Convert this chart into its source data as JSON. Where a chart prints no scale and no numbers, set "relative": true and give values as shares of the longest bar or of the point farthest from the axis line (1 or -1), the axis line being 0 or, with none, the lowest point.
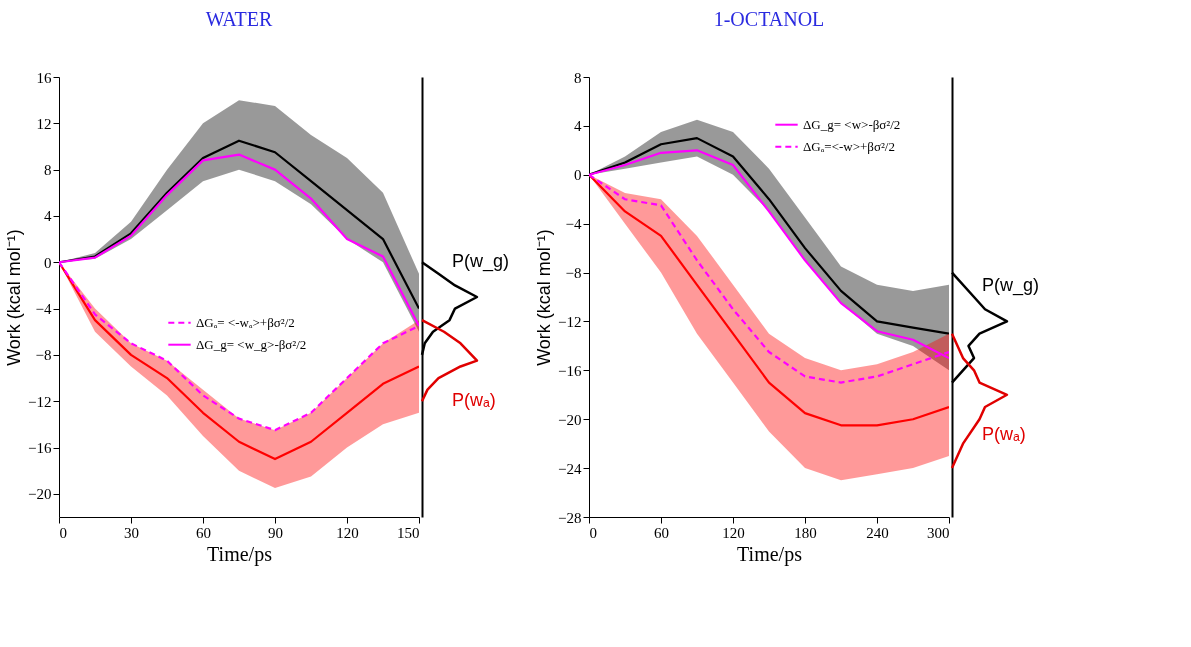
{
  "chart_data": [
    {
      "type": "line",
      "title": "WATER",
      "xlabel": "Time/ps",
      "ylabel": "Work (kcal mol⁻¹)",
      "xlim": [
        0,
        150
      ],
      "ylim": [
        -22,
        16
      ],
      "xticks": [
        0,
        30,
        60,
        90,
        120,
        150
      ],
      "yticks": [
        -20,
        -16,
        -12,
        -8,
        -4,
        0,
        4,
        8,
        12,
        16
      ],
      "legend": "left",
      "marker": "none",
      "grid": false,
      "x": [
        0,
        15,
        30,
        45,
        60,
        75,
        90,
        105,
        120,
        135,
        150
      ],
      "series": [
        {
          "color": "#000000",
          "values": [
            0,
            0.5,
            2.5,
            6,
            9,
            10.5,
            9.5,
            7,
            4.5,
            2,
            -4
          ],
          "lower": [
            0,
            0.3,
            2,
            4.5,
            7,
            8,
            7,
            5,
            2,
            0,
            -6
          ],
          "upper": [
            0,
            0.8,
            3.5,
            8,
            12,
            14,
            13.5,
            11,
            9,
            6,
            -1
          ]
        },
        {
          "color": "#ff0000",
          "values": [
            0,
            -5,
            -8,
            -10,
            -13,
            -15.5,
            -17,
            -15.5,
            -13,
            -10.5,
            -9
          ],
          "lower": [
            0,
            -6,
            -9,
            -11.5,
            -15,
            -18,
            -19.5,
            -18.5,
            -16,
            -14,
            -13
          ],
          "upper": [
            0,
            -4,
            -7,
            -8.5,
            -11,
            -13.5,
            -14.5,
            -13,
            -10,
            -7,
            -5
          ]
        },
        {
          "name": "ΔGₐ= <-wₐ>+βσ²/2",
          "color": "#ff00ff",
          "line_style": "dashed",
          "values": [
            0,
            -4.5,
            -7,
            -8.5,
            -11.5,
            -13.5,
            -14.5,
            -13,
            -10,
            -7,
            -5.5
          ]
        },
        {
          "name": "ΔG_g= <w_g>-βσ²/2",
          "color": "#ff00ff",
          "line_style": "solid",
          "values": [
            0,
            0.4,
            2.3,
            5.8,
            8.8,
            9.3,
            8,
            5.5,
            2,
            0.5,
            -5.5
          ]
        }
      ]
    },
    {
      "type": "line",
      "orientation": "horizontal",
      "relative": true,
      "ylim": [
        -22,
        16
      ],
      "tick_labels": false,
      "series": [
        {
          "name": "P(w_g)",
          "color": "#000000",
          "x": [
            0,
            -1,
            -2,
            -3,
            -4,
            -5,
            -6,
            -7,
            -8
          ],
          "values": [
            0,
            0.3,
            0.6,
            1.0,
            0.6,
            0.5,
            0.2,
            0.05,
            0
          ]
        },
        {
          "name": "P(wₐ)",
          "color": "#e00000",
          "x": [
            -5,
            -6,
            -7,
            -8,
            -8.5,
            -9,
            -10,
            -11,
            -12
          ],
          "values": [
            0,
            0.4,
            0.7,
            0.9,
            1.0,
            0.7,
            0.3,
            0.1,
            0
          ]
        }
      ]
    },
    {
      "type": "line",
      "title": "1-OCTANOL",
      "xlabel": "Time/ps",
      "ylabel": "Work (kcal mol⁻¹)",
      "xlim": [
        0,
        300
      ],
      "ylim": [
        -28,
        8
      ],
      "xticks": [
        0,
        60,
        120,
        180,
        240,
        300
      ],
      "yticks": [
        -28,
        -24,
        -20,
        -16,
        -12,
        -8,
        -4,
        0,
        4,
        8
      ],
      "legend": "top right",
      "marker": "none",
      "grid": false,
      "x": [
        0,
        30,
        60,
        90,
        120,
        150,
        180,
        210,
        240,
        270,
        300
      ],
      "series": [
        {
          "color": "#000000",
          "values": [
            0,
            1,
            2.5,
            3,
            1.5,
            -2,
            -6,
            -9.5,
            -12,
            -12.5,
            -13
          ],
          "lower": [
            0,
            0.5,
            1,
            1.5,
            0,
            -3,
            -7,
            -10.5,
            -13,
            -14,
            -16
          ],
          "upper": [
            0,
            1.5,
            3.5,
            4.5,
            3.5,
            0.5,
            -3.5,
            -7.5,
            -9,
            -9.5,
            -9
          ]
        },
        {
          "color": "#ff0000",
          "values": [
            0,
            -3,
            -5,
            -9,
            -13,
            -17,
            -19.5,
            -20.5,
            -20.5,
            -20,
            -19
          ],
          "lower": [
            0,
            -4,
            -8,
            -13,
            -17,
            -21,
            -24,
            -25,
            -24.5,
            -24,
            -23
          ],
          "upper": [
            0,
            -1.5,
            -2,
            -5,
            -9,
            -13,
            -15,
            -16,
            -15.5,
            -14.5,
            -13
          ]
        },
        {
          "name": "ΔG_g= <w>-βσ²/2",
          "color": "#ff00ff",
          "line_style": "solid",
          "values": [
            0,
            0.8,
            1.8,
            2,
            0.8,
            -3,
            -7,
            -10.5,
            -12.8,
            -13.5,
            -15
          ]
        },
        {
          "name": "ΔGₐ=<-w>+βσ²/2",
          "color": "#ff00ff",
          "line_style": "dashed",
          "values": [
            0,
            -2,
            -2.5,
            -7,
            -11,
            -14.5,
            -16.5,
            -17,
            -16.5,
            -15.5,
            -14.5
          ]
        }
      ]
    },
    {
      "type": "line",
      "orientation": "horizontal",
      "relative": true,
      "ylim": [
        -28,
        8
      ],
      "tick_labels": false,
      "series": [
        {
          "name": "P(w_g)",
          "color": "#000000",
          "x": [
            -8,
            -10,
            -11,
            -12,
            -13,
            -14,
            -15,
            -16,
            -17
          ],
          "values": [
            0,
            0.4,
            0.6,
            1.0,
            0.5,
            0.3,
            0.4,
            0.2,
            0
          ]
        },
        {
          "name": "P(wₐ)",
          "color": "#e00000",
          "x": [
            -13,
            -15,
            -16,
            -17,
            -18,
            -19,
            -20,
            -22,
            -24
          ],
          "values": [
            0,
            0.2,
            0.4,
            0.5,
            1.0,
            0.6,
            0.5,
            0.2,
            0
          ]
        }
      ]
    }
  ]
}
